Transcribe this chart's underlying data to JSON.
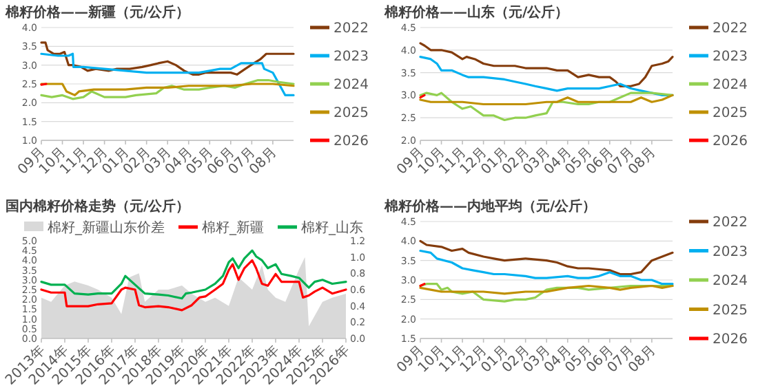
{
  "chart_data": [
    {
      "type": "line",
      "title": "棉籽价格——新疆（元/公斤）",
      "xlim": [
        "2022-09-01",
        "2023-08-31"
      ],
      "xticks": [
        {
          "value": "2022-09-01",
          "label": "09月"
        },
        {
          "value": "2022-10-01",
          "label": "10月"
        },
        {
          "value": "2022-11-01",
          "label": "11月"
        },
        {
          "value": "2022-12-01",
          "label": "12月"
        },
        {
          "value": "2023-01-01",
          "label": "01月"
        },
        {
          "value": "2023-02-01",
          "label": "02月"
        },
        {
          "value": "2023-03-01",
          "label": "03月"
        },
        {
          "value": "2023-04-01",
          "label": "04月"
        },
        {
          "value": "2023-05-01",
          "label": "05月"
        },
        {
          "value": "2023-06-01",
          "label": "06月"
        },
        {
          "value": "2023-07-01",
          "label": "07月"
        },
        {
          "value": "2023-08-01",
          "label": "08月"
        }
      ],
      "ylim": [
        1,
        4
      ],
      "yticks": [
        {
          "value": 1,
          "label": "1.0"
        },
        {
          "value": 1.5,
          "label": "1.5"
        },
        {
          "value": 2,
          "label": "2.0"
        },
        {
          "value": 2.5,
          "label": "2.5"
        },
        {
          "value": 3,
          "label": "3.0"
        },
        {
          "value": 3.5,
          "label": "3.5"
        },
        {
          "value": 4,
          "label": "4.0"
        }
      ],
      "grid": "y",
      "legend": "right",
      "series": [
        {
          "name": "2022",
          "color": "#843c0c",
          "x": [
            "2022-09-01",
            "2022-09-07",
            "2022-09-10",
            "2022-09-19",
            "2022-09-28",
            "2022-10-04",
            "2022-10-10",
            "2022-10-16",
            "2022-10-28",
            "2022-11-07",
            "2022-11-19",
            "2022-12-07",
            "2022-12-19",
            "2023-01-07",
            "2023-01-25",
            "2023-02-07",
            "2023-02-18",
            "2023-03-01",
            "2023-03-13",
            "2023-03-25",
            "2023-04-07",
            "2023-04-16",
            "2023-04-25",
            "2023-05-16",
            "2023-06-01",
            "2023-06-10",
            "2023-06-22",
            "2023-07-04",
            "2023-07-13",
            "2023-07-22",
            "2023-08-07",
            "2023-08-31"
          ],
          "values": [
            3.6,
            3.6,
            3.4,
            3.3,
            3.3,
            3.35,
            3.0,
            3.0,
            2.95,
            2.85,
            2.9,
            2.85,
            2.9,
            2.9,
            2.95,
            3.0,
            3.05,
            3.1,
            3.0,
            2.85,
            2.75,
            2.75,
            2.8,
            2.8,
            2.8,
            2.75,
            2.9,
            3.05,
            3.15,
            3.3,
            3.3,
            3.3
          ]
        },
        {
          "name": "2023",
          "color": "#00b0f0",
          "x": [
            "2022-09-01",
            "2022-09-25",
            "2022-10-10",
            "2022-10-16",
            "2022-10-17",
            "2022-11-01",
            "2022-12-01",
            "2023-01-01",
            "2023-02-01",
            "2023-03-01",
            "2023-04-01",
            "2023-04-16",
            "2023-05-01",
            "2023-05-16",
            "2023-06-01",
            "2023-06-16",
            "2023-07-01",
            "2023-07-16",
            "2023-07-19",
            "2023-08-01",
            "2023-08-10",
            "2023-08-19",
            "2023-08-31"
          ],
          "values": [
            3.3,
            3.25,
            3.25,
            3.3,
            2.95,
            2.95,
            2.9,
            2.85,
            2.8,
            2.8,
            2.8,
            2.8,
            2.85,
            2.9,
            2.9,
            3.05,
            3.05,
            3.05,
            2.9,
            2.8,
            2.5,
            2.2,
            2.2
          ]
        },
        {
          "name": "2024",
          "color": "#92d050",
          "x": [
            "2022-09-01",
            "2022-09-16",
            "2022-10-01",
            "2022-10-16",
            "2022-11-01",
            "2022-11-13",
            "2022-12-01",
            "2023-01-01",
            "2023-01-16",
            "2023-02-15",
            "2023-02-26",
            "2023-03-07",
            "2023-03-25",
            "2023-04-16",
            "2023-05-01",
            "2023-05-22",
            "2023-06-07",
            "2023-06-22",
            "2023-07-10",
            "2023-07-25",
            "2023-08-10",
            "2023-08-31"
          ],
          "values": [
            2.2,
            2.15,
            2.2,
            2.1,
            2.15,
            2.3,
            2.15,
            2.15,
            2.2,
            2.25,
            2.4,
            2.45,
            2.35,
            2.35,
            2.4,
            2.45,
            2.4,
            2.5,
            2.6,
            2.6,
            2.55,
            2.5
          ]
        },
        {
          "name": "2025",
          "color": "#bf9000",
          "x": [
            "2022-09-01",
            "2022-10-01",
            "2022-10-07",
            "2022-10-19",
            "2022-10-25",
            "2022-11-16",
            "2022-12-01",
            "2023-01-01",
            "2023-02-01",
            "2023-03-01",
            "2023-04-01",
            "2023-05-01",
            "2023-06-01",
            "2023-07-01",
            "2023-08-01",
            "2023-08-31"
          ],
          "values": [
            2.5,
            2.5,
            2.3,
            2.2,
            2.3,
            2.35,
            2.35,
            2.35,
            2.4,
            2.4,
            2.45,
            2.45,
            2.45,
            2.5,
            2.5,
            2.45
          ]
        },
        {
          "name": "2026",
          "color": "#ff0000",
          "x": [
            "2022-09-01",
            "2022-09-08"
          ],
          "values": [
            2.48,
            2.5
          ]
        }
      ]
    },
    {
      "type": "line",
      "title": "棉籽价格——山东（元/公斤）",
      "xlim": [
        "2022-09-01",
        "2023-08-31"
      ],
      "xticks": [
        {
          "value": "2022-09-01",
          "label": "09月"
        },
        {
          "value": "2022-10-01",
          "label": "10月"
        },
        {
          "value": "2022-11-01",
          "label": "11月"
        },
        {
          "value": "2022-12-01",
          "label": "12月"
        },
        {
          "value": "2023-01-01",
          "label": "01月"
        },
        {
          "value": "2023-02-01",
          "label": "02月"
        },
        {
          "value": "2023-03-01",
          "label": "03月"
        },
        {
          "value": "2023-04-01",
          "label": "04月"
        },
        {
          "value": "2023-05-01",
          "label": "05月"
        },
        {
          "value": "2023-06-01",
          "label": "06月"
        },
        {
          "value": "2023-07-01",
          "label": "07月"
        },
        {
          "value": "2023-08-01",
          "label": "08月"
        }
      ],
      "ylim": [
        2,
        4.5
      ],
      "yticks": [
        {
          "value": 2,
          "label": "2.0"
        },
        {
          "value": 2.5,
          "label": "2.5"
        },
        {
          "value": 3,
          "label": "3.0"
        },
        {
          "value": 3.5,
          "label": "3.5"
        },
        {
          "value": 4,
          "label": "4.0"
        },
        {
          "value": 4.5,
          "label": "4.5"
        }
      ],
      "grid": "y",
      "legend": "right",
      "series": [
        {
          "name": "2022",
          "color": "#843c0c",
          "x": [
            "2022-09-01",
            "2022-09-07",
            "2022-09-16",
            "2022-10-01",
            "2022-10-16",
            "2022-11-01",
            "2022-11-07",
            "2022-11-19",
            "2022-12-01",
            "2022-12-16",
            "2023-01-01",
            "2023-01-16",
            "2023-02-01",
            "2023-02-15",
            "2023-03-01",
            "2023-03-16",
            "2023-04-01",
            "2023-04-16",
            "2023-05-01",
            "2023-05-16",
            "2023-06-01",
            "2023-06-10",
            "2023-06-16",
            "2023-07-01",
            "2023-07-13",
            "2023-07-22",
            "2023-08-01",
            "2023-08-16",
            "2023-08-25",
            "2023-08-31"
          ],
          "values": [
            4.15,
            4.1,
            4.0,
            4.0,
            3.95,
            3.8,
            3.85,
            3.8,
            3.7,
            3.65,
            3.65,
            3.65,
            3.6,
            3.6,
            3.6,
            3.55,
            3.55,
            3.4,
            3.45,
            3.4,
            3.4,
            3.3,
            3.2,
            3.2,
            3.25,
            3.4,
            3.65,
            3.7,
            3.75,
            3.85
          ]
        },
        {
          "name": "2023",
          "color": "#00b0f0",
          "x": [
            "2022-09-01",
            "2022-09-16",
            "2022-09-25",
            "2022-10-01",
            "2022-10-16",
            "2022-11-01",
            "2022-11-10",
            "2022-12-01",
            "2023-01-01",
            "2023-01-16",
            "2023-02-01",
            "2023-02-15",
            "2023-03-01",
            "2023-03-16",
            "2023-04-01",
            "2023-04-16",
            "2023-05-01",
            "2023-05-16",
            "2023-06-01",
            "2023-06-16",
            "2023-07-01",
            "2023-07-16",
            "2023-08-01",
            "2023-08-16",
            "2023-08-31"
          ],
          "values": [
            3.85,
            3.8,
            3.7,
            3.55,
            3.55,
            3.45,
            3.4,
            3.4,
            3.35,
            3.3,
            3.25,
            3.2,
            3.15,
            3.1,
            3.15,
            3.15,
            3.15,
            3.15,
            3.2,
            3.25,
            3.15,
            3.1,
            3.05,
            3.0,
            3.0
          ]
        },
        {
          "name": "2024",
          "color": "#92d050",
          "x": [
            "2022-09-01",
            "2022-09-10",
            "2022-09-25",
            "2022-10-01",
            "2022-10-16",
            "2022-11-01",
            "2022-11-13",
            "2022-12-01",
            "2022-12-16",
            "2023-01-01",
            "2023-01-16",
            "2023-02-01",
            "2023-02-15",
            "2023-03-01",
            "2023-03-10",
            "2023-03-25",
            "2023-04-16",
            "2023-05-01",
            "2023-05-16",
            "2023-06-01",
            "2023-06-16",
            "2023-07-01",
            "2023-08-01",
            "2023-08-31"
          ],
          "values": [
            3.0,
            3.05,
            3.0,
            3.05,
            2.85,
            2.7,
            2.75,
            2.55,
            2.55,
            2.45,
            2.5,
            2.5,
            2.55,
            2.6,
            2.85,
            2.85,
            2.8,
            2.8,
            2.85,
            2.85,
            2.95,
            3.05,
            3.05,
            3.0
          ]
        },
        {
          "name": "2025",
          "color": "#bf9000",
          "x": [
            "2022-09-01",
            "2022-09-16",
            "2022-10-01",
            "2022-11-01",
            "2022-12-01",
            "2023-01-01",
            "2023-02-01",
            "2023-03-01",
            "2023-03-16",
            "2023-04-01",
            "2023-04-16",
            "2023-05-01",
            "2023-06-01",
            "2023-06-16",
            "2023-07-01",
            "2023-07-16",
            "2023-08-01",
            "2023-08-16",
            "2023-08-31"
          ],
          "values": [
            2.9,
            2.85,
            2.85,
            2.85,
            2.8,
            2.8,
            2.8,
            2.85,
            2.85,
            2.95,
            2.85,
            2.85,
            2.85,
            2.85,
            2.85,
            2.95,
            2.85,
            2.9,
            3.0
          ]
        },
        {
          "name": "2026",
          "color": "#ff0000",
          "x": [
            "2022-09-01",
            "2022-09-07"
          ],
          "values": [
            2.95,
            3.0
          ]
        }
      ]
    },
    {
      "type": "line",
      "title": "国内棉籽价格走势（元/公斤）",
      "xlim": [
        "2013-01",
        "2026-01"
      ],
      "xticks": [
        {
          "value": "2013",
          "label": "2013年"
        },
        {
          "value": "2014",
          "label": "2014年"
        },
        {
          "value": "2015",
          "label": "2015年"
        },
        {
          "value": "2016",
          "label": "2016年"
        },
        {
          "value": "2017",
          "label": "2017年"
        },
        {
          "value": "2018",
          "label": "2018年"
        },
        {
          "value": "2019",
          "label": "2019年"
        },
        {
          "value": "2020",
          "label": "2020年"
        },
        {
          "value": "2021",
          "label": "2021年"
        },
        {
          "value": "2022",
          "label": "2022年"
        },
        {
          "value": "2023",
          "label": "2023年"
        },
        {
          "value": "2024",
          "label": "2024年"
        },
        {
          "value": "2025",
          "label": "2025年"
        },
        {
          "value": "2026",
          "label": "2026年"
        }
      ],
      "ylim": [
        0,
        5
      ],
      "yticks": [
        {
          "value": 0,
          "label": "0.0"
        },
        {
          "value": 0.5,
          "label": "0.5"
        },
        {
          "value": 1,
          "label": "1.0"
        },
        {
          "value": 1.5,
          "label": "1.5"
        },
        {
          "value": 2,
          "label": "2.0"
        },
        {
          "value": 2.5,
          "label": "2.5"
        },
        {
          "value": 3,
          "label": "3.0"
        },
        {
          "value": 3.5,
          "label": "3.5"
        },
        {
          "value": 4,
          "label": "4.0"
        },
        {
          "value": 4.5,
          "label": "4.5"
        },
        {
          "value": 5,
          "label": "5.0"
        }
      ],
      "y2lim": [
        0,
        1.2
      ],
      "y2ticks": [
        {
          "value": 0,
          "label": "0.0"
        },
        {
          "value": 0.2,
          "label": "0.2"
        },
        {
          "value": 0.4,
          "label": "0.4"
        },
        {
          "value": 0.6,
          "label": "0.6"
        },
        {
          "value": 0.8,
          "label": "0.8"
        },
        {
          "value": 1,
          "label": "1.0"
        },
        {
          "value": 1.2,
          "label": "1.2"
        }
      ],
      "grid": false,
      "legend": "top",
      "series": [
        {
          "name": "棉籽_新疆山东价差",
          "type": "area",
          "axis": "y2",
          "color": "#d9d9d9",
          "x": [
            "2013-01",
            "2013-06",
            "2014-01",
            "2014-06",
            "2015-01",
            "2015-06",
            "2016-01",
            "2016-06",
            "2016-10",
            "2017-03",
            "2017-06",
            "2018-01",
            "2018-06",
            "2019-01",
            "2019-06",
            "2020-01",
            "2020-06",
            "2021-01",
            "2021-06",
            "2022-01",
            "2022-06",
            "2022-09",
            "2023-01",
            "2023-06",
            "2024-01",
            "2024-04",
            "2024-06",
            "2025-01",
            "2025-06",
            "2026-01"
          ],
          "values": [
            0.5,
            0.45,
            0.65,
            0.7,
            0.65,
            0.6,
            0.5,
            0.3,
            0.75,
            0.8,
            0.45,
            0.6,
            0.6,
            0.65,
            0.55,
            0.45,
            0.5,
            0.4,
            0.75,
            0.6,
            0.9,
            0.6,
            0.5,
            0.45,
            0.85,
            1.0,
            0.15,
            0.45,
            0.5,
            0.55
          ]
        },
        {
          "name": "棉籽_新疆",
          "color": "#ff0000",
          "x": [
            "2013-01",
            "2013-06",
            "2014-01",
            "2014-02",
            "2015-01",
            "2015-06",
            "2016-01",
            "2016-06",
            "2016-08",
            "2017-01",
            "2017-03",
            "2017-06",
            "2018-01",
            "2018-06",
            "2019-01",
            "2019-06",
            "2019-10",
            "2020-01",
            "2020-06",
            "2020-10",
            "2021-01",
            "2021-03",
            "2021-06",
            "2021-09",
            "2022-01",
            "2022-03",
            "2022-06",
            "2022-09",
            "2023-01",
            "2023-04",
            "2023-09",
            "2024-01",
            "2024-03",
            "2024-06",
            "2024-09",
            "2025-01",
            "2025-06",
            "2026-01"
          ],
          "values": [
            2.5,
            2.35,
            2.35,
            1.65,
            1.65,
            1.75,
            1.8,
            2.5,
            2.6,
            2.5,
            1.7,
            1.6,
            1.65,
            1.6,
            1.45,
            1.7,
            2.1,
            2.15,
            2.5,
            2.8,
            3.5,
            3.8,
            3.0,
            3.6,
            4.0,
            3.6,
            2.8,
            2.7,
            3.3,
            2.9,
            2.9,
            2.9,
            2.1,
            2.2,
            2.4,
            2.6,
            2.3,
            2.5
          ]
        },
        {
          "name": "棉籽_山东",
          "color": "#00b050",
          "x": [
            "2013-01",
            "2013-06",
            "2014-01",
            "2014-06",
            "2015-01",
            "2015-06",
            "2016-01",
            "2016-06",
            "2016-08",
            "2017-01",
            "2017-06",
            "2018-01",
            "2018-06",
            "2019-01",
            "2019-03",
            "2019-06",
            "2020-01",
            "2020-06",
            "2020-10",
            "2021-01",
            "2021-03",
            "2021-06",
            "2021-09",
            "2022-01",
            "2022-03",
            "2022-06",
            "2022-09",
            "2023-01",
            "2023-04",
            "2023-09",
            "2024-01",
            "2024-06",
            "2024-09",
            "2025-01",
            "2025-06",
            "2026-01"
          ],
          "values": [
            2.9,
            2.75,
            2.75,
            2.3,
            2.25,
            2.3,
            2.3,
            2.8,
            3.2,
            2.75,
            2.3,
            2.25,
            2.2,
            2.05,
            2.3,
            2.35,
            2.5,
            2.8,
            3.2,
            3.9,
            4.1,
            3.6,
            4.1,
            4.5,
            4.2,
            4.0,
            3.6,
            3.8,
            3.3,
            3.2,
            3.1,
            2.6,
            2.9,
            3.0,
            2.8,
            2.9
          ]
        }
      ]
    },
    {
      "type": "line",
      "title": "棉籽价格——内地平均（元/公斤）",
      "xlim": [
        "2022-09-01",
        "2023-08-31"
      ],
      "xticks": [
        {
          "value": "2022-09-01",
          "label": "09月"
        },
        {
          "value": "2022-10-01",
          "label": "10月"
        },
        {
          "value": "2022-11-01",
          "label": "11月"
        },
        {
          "value": "2022-12-01",
          "label": "12月"
        },
        {
          "value": "2023-01-01",
          "label": "01月"
        },
        {
          "value": "2023-02-01",
          "label": "02月"
        },
        {
          "value": "2023-03-01",
          "label": "03月"
        },
        {
          "value": "2023-04-01",
          "label": "04月"
        },
        {
          "value": "2023-05-01",
          "label": "05月"
        },
        {
          "value": "2023-06-01",
          "label": "06月"
        },
        {
          "value": "2023-07-01",
          "label": "07月"
        },
        {
          "value": "2023-08-01",
          "label": "08月"
        }
      ],
      "ylim": [
        1.5,
        4.5
      ],
      "yticks": [
        {
          "value": 1.5,
          "label": "1.5"
        },
        {
          "value": 2,
          "label": "2.0"
        },
        {
          "value": 2.5,
          "label": "2.5"
        },
        {
          "value": 3,
          "label": "3.0"
        },
        {
          "value": 3.5,
          "label": "3.5"
        },
        {
          "value": 4,
          "label": "4.0"
        },
        {
          "value": 4.5,
          "label": "4.5"
        }
      ],
      "grid": "y",
      "legend": "right",
      "series": [
        {
          "name": "2022",
          "color": "#843c0c",
          "x": [
            "2022-09-01",
            "2022-09-10",
            "2022-10-01",
            "2022-10-16",
            "2022-11-01",
            "2022-11-10",
            "2022-12-01",
            "2022-12-16",
            "2023-01-01",
            "2023-02-01",
            "2023-03-01",
            "2023-03-16",
            "2023-04-01",
            "2023-04-16",
            "2023-05-01",
            "2023-06-01",
            "2023-06-16",
            "2023-07-01",
            "2023-07-16",
            "2023-08-01",
            "2023-08-16",
            "2023-08-31"
          ],
          "values": [
            4.0,
            3.9,
            3.85,
            3.75,
            3.8,
            3.7,
            3.6,
            3.55,
            3.5,
            3.55,
            3.5,
            3.45,
            3.35,
            3.3,
            3.3,
            3.25,
            3.15,
            3.15,
            3.2,
            3.5,
            3.6,
            3.7
          ]
        },
        {
          "name": "2023",
          "color": "#00b0f0",
          "x": [
            "2022-09-01",
            "2022-09-16",
            "2022-09-25",
            "2022-10-16",
            "2022-11-01",
            "2022-11-16",
            "2022-12-01",
            "2022-12-16",
            "2023-01-01",
            "2023-02-01",
            "2023-02-15",
            "2023-03-01",
            "2023-04-01",
            "2023-04-16",
            "2023-05-01",
            "2023-05-16",
            "2023-06-01",
            "2023-06-16",
            "2023-07-01",
            "2023-07-16",
            "2023-08-01",
            "2023-08-16",
            "2023-08-31"
          ],
          "values": [
            3.75,
            3.7,
            3.55,
            3.45,
            3.3,
            3.25,
            3.2,
            3.15,
            3.15,
            3.1,
            3.05,
            3.05,
            3.1,
            3.05,
            3.05,
            3.1,
            3.2,
            3.1,
            3.1,
            3.0,
            3.0,
            2.9,
            2.9
          ]
        },
        {
          "name": "2024",
          "color": "#92d050",
          "x": [
            "2022-09-01",
            "2022-09-10",
            "2022-09-25",
            "2022-10-01",
            "2022-10-10",
            "2022-10-16",
            "2022-11-01",
            "2022-11-16",
            "2022-12-01",
            "2023-01-01",
            "2023-01-16",
            "2023-02-01",
            "2023-02-15",
            "2023-03-01",
            "2023-03-16",
            "2023-04-16",
            "2023-05-01",
            "2023-06-01",
            "2023-07-01",
            "2023-08-01",
            "2023-08-31"
          ],
          "values": [
            2.85,
            2.9,
            2.9,
            2.75,
            2.8,
            2.7,
            2.65,
            2.7,
            2.5,
            2.45,
            2.5,
            2.5,
            2.55,
            2.75,
            2.8,
            2.8,
            2.75,
            2.8,
            2.85,
            2.85,
            2.85
          ]
        },
        {
          "name": "2025",
          "color": "#bf9000",
          "x": [
            "2022-09-01",
            "2022-09-16",
            "2022-10-01",
            "2022-11-01",
            "2022-12-01",
            "2023-01-01",
            "2023-02-01",
            "2023-03-01",
            "2023-04-01",
            "2023-05-01",
            "2023-06-01",
            "2023-06-16",
            "2023-07-01",
            "2023-08-01",
            "2023-08-16",
            "2023-08-31"
          ],
          "values": [
            2.8,
            2.75,
            2.7,
            2.7,
            2.7,
            2.65,
            2.7,
            2.7,
            2.8,
            2.85,
            2.8,
            2.75,
            2.8,
            2.85,
            2.8,
            2.85
          ]
        },
        {
          "name": "2026",
          "color": "#ff0000",
          "x": [
            "2022-09-01",
            "2022-09-07"
          ],
          "values": [
            2.85,
            2.9
          ]
        }
      ]
    }
  ]
}
